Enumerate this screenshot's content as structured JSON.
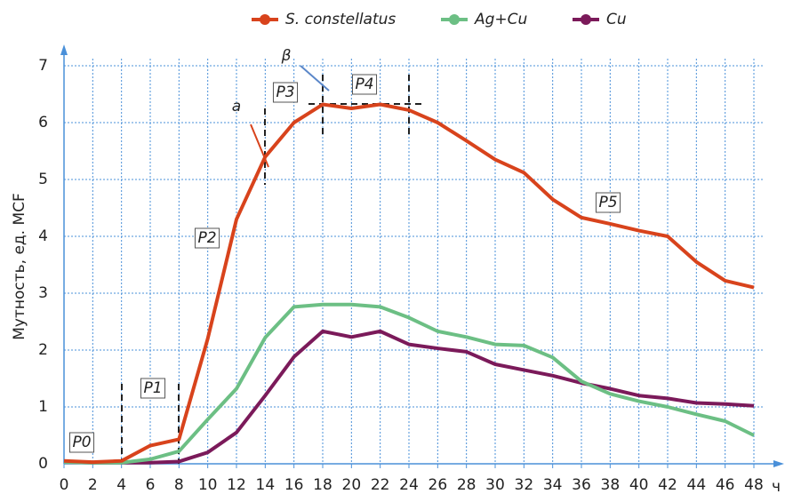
{
  "chart_data": {
    "type": "line",
    "ylabel": "Мутность, ед. MCF",
    "xlabel": "ч",
    "x": [
      0,
      2,
      4,
      6,
      8,
      10,
      12,
      14,
      16,
      18,
      20,
      22,
      24,
      26,
      28,
      30,
      32,
      34,
      36,
      38,
      40,
      42,
      44,
      46,
      48
    ],
    "series": [
      {
        "name": "S. constellatus",
        "color": "#d8431c",
        "values": [
          0.05,
          0.03,
          0.05,
          0.32,
          0.43,
          2.2,
          4.3,
          5.4,
          6.0,
          6.32,
          6.25,
          6.32,
          6.22,
          6.0,
          5.68,
          5.35,
          5.12,
          4.65,
          4.33,
          4.22,
          4.1,
          4.0,
          3.55,
          3.22,
          3.1
        ]
      },
      {
        "name": "Ag+Cu",
        "color": "#6cbf84",
        "values": [
          0.03,
          0.02,
          0.02,
          0.08,
          0.22,
          0.78,
          1.32,
          2.22,
          2.76,
          2.8,
          2.8,
          2.76,
          2.57,
          2.33,
          2.23,
          2.1,
          2.08,
          1.87,
          1.45,
          1.23,
          1.1,
          1.0,
          0.87,
          0.75,
          0.5
        ]
      },
      {
        "name": "Cu",
        "color": "#7b1a5a",
        "values": [
          0.03,
          0.02,
          0.02,
          0.02,
          0.04,
          0.2,
          0.55,
          1.2,
          1.88,
          2.33,
          2.23,
          2.33,
          2.1,
          2.03,
          1.97,
          1.75,
          1.65,
          1.55,
          1.42,
          1.32,
          1.2,
          1.15,
          1.07,
          1.05,
          1.02
        ]
      }
    ],
    "xlim": [
      0,
      48
    ],
    "xticks": [
      0,
      2,
      4,
      6,
      8,
      10,
      12,
      14,
      16,
      18,
      20,
      22,
      24,
      26,
      28,
      30,
      32,
      34,
      36,
      38,
      40,
      42,
      44,
      46,
      48
    ],
    "ylim": [
      0,
      7
    ],
    "yticks": [
      0,
      1,
      2,
      3,
      4,
      5,
      6,
      7
    ],
    "grid": true,
    "legend": "top",
    "annotations": [
      "P0",
      "P1",
      "P2",
      "P3",
      "P4",
      "P5",
      "a",
      "β"
    ]
  }
}
